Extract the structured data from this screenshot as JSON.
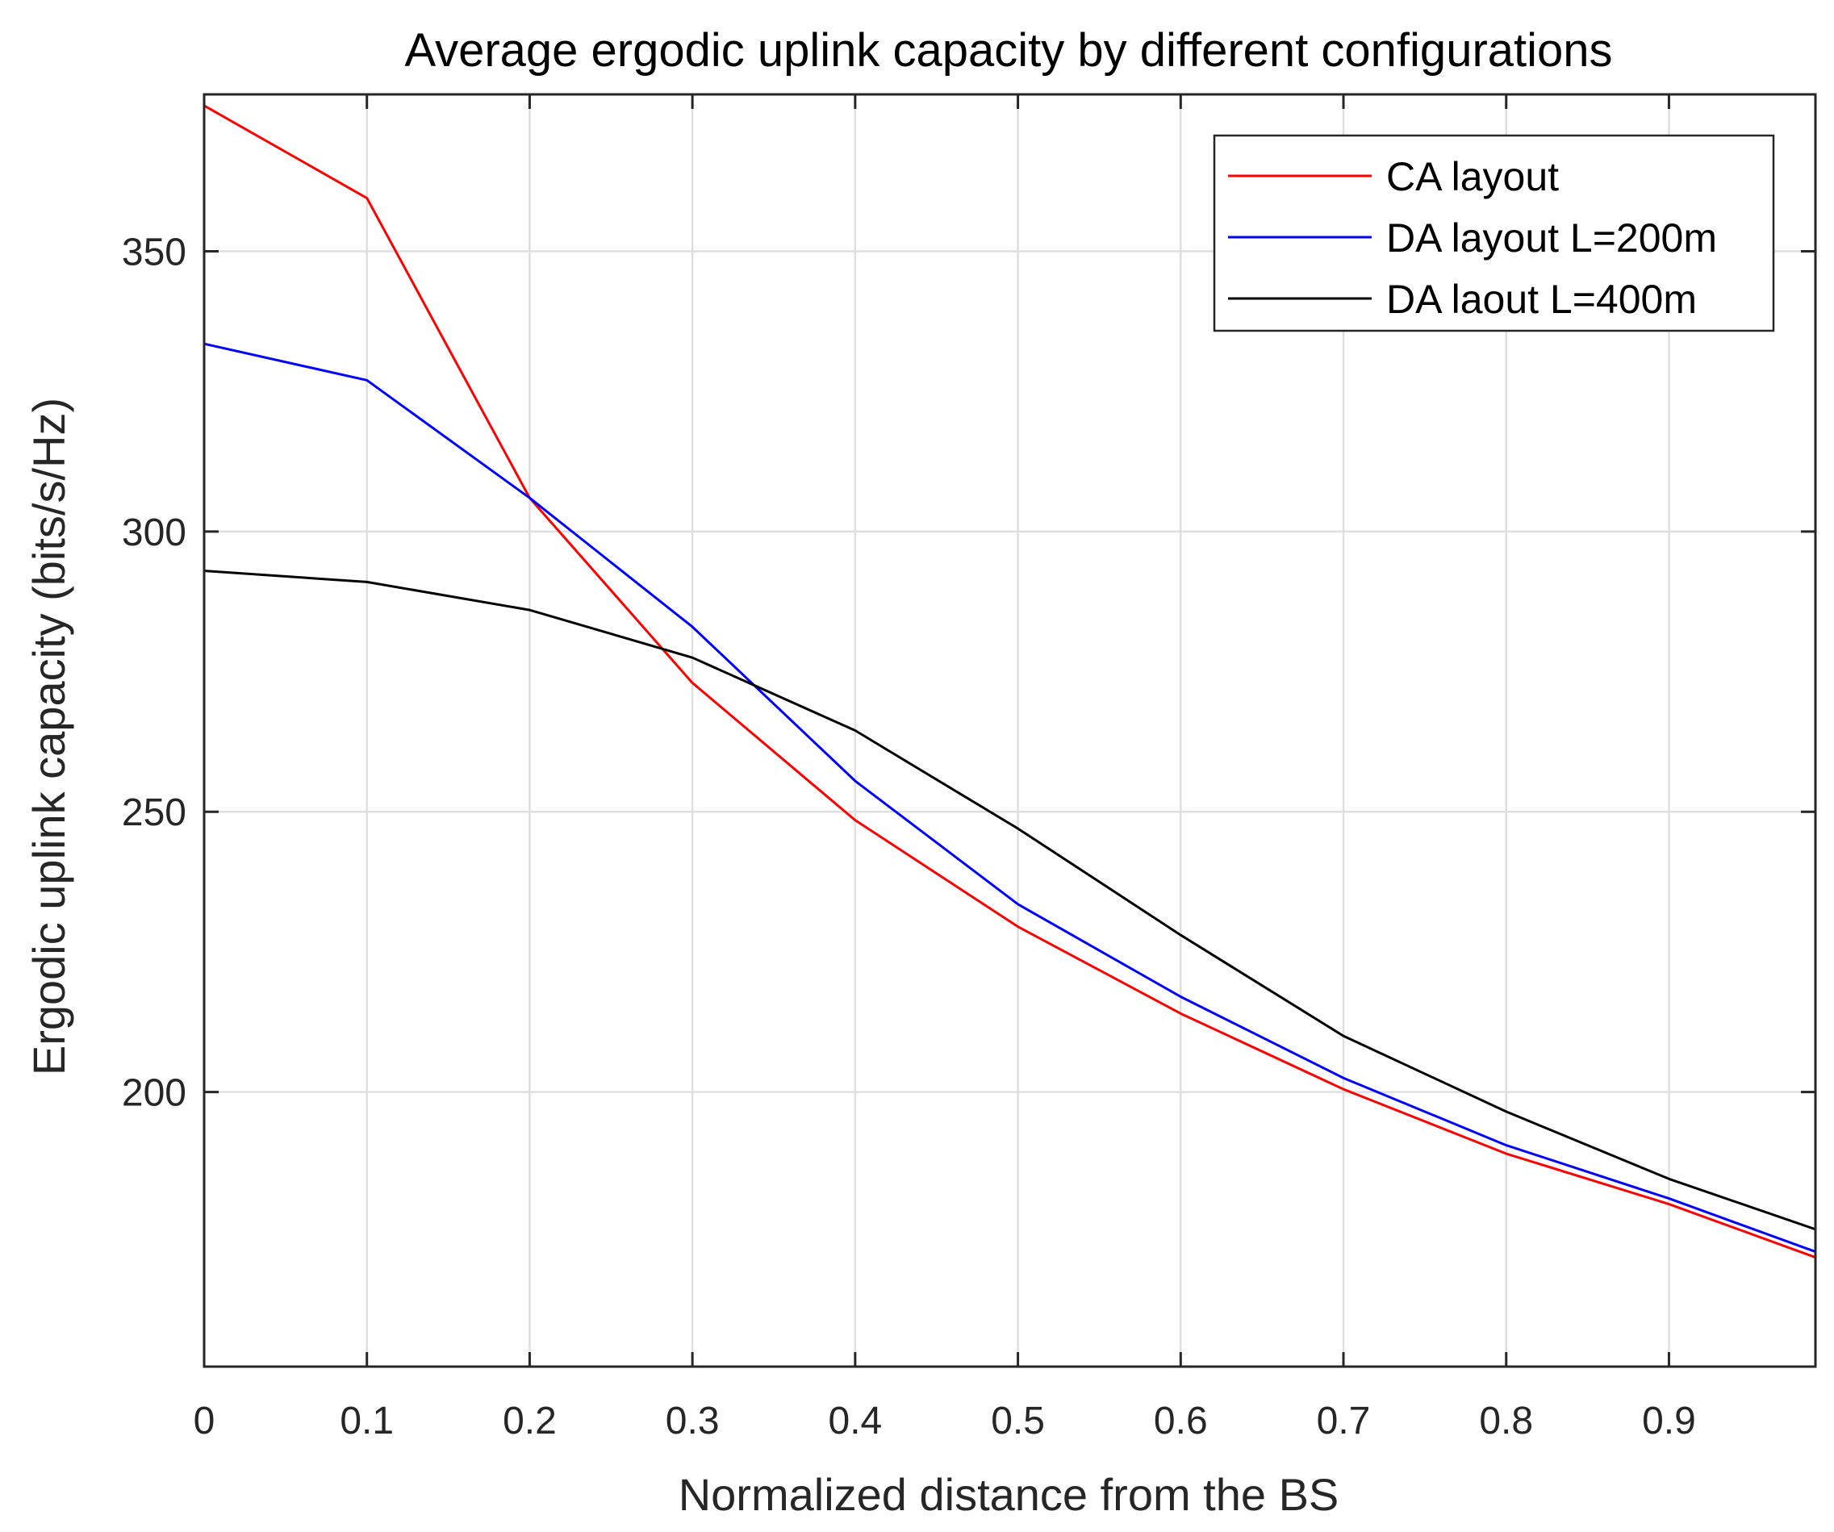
{
  "chart_data": {
    "type": "line",
    "title": "Average ergodic uplink capacity by different configurations",
    "xlabel": "Normalized distance from the BS",
    "ylabel": "Ergodic uplink capacity (bits/s/Hz)",
    "xlim": [
      0,
      0.99
    ],
    "ylim": [
      151,
      378
    ],
    "xticks": [
      0,
      0.1,
      0.2,
      0.3,
      0.4,
      0.5,
      0.6,
      0.7,
      0.8,
      0.9
    ],
    "xtick_labels": [
      "0",
      "0.1",
      "0.2",
      "0.3",
      "0.4",
      "0.5",
      "0.6",
      "0.7",
      "0.8",
      "0.9"
    ],
    "yticks": [
      200,
      250,
      300,
      350
    ],
    "ytick_labels": [
      "200",
      "250",
      "300",
      "350"
    ],
    "grid": true,
    "legend_position": "top-right",
    "x": [
      0,
      0.1,
      0.2,
      0.3,
      0.4,
      0.5,
      0.6,
      0.7,
      0.8,
      0.9,
      0.99
    ],
    "series": [
      {
        "name": "CA layout",
        "color": "#ff0000",
        "values": [
          376,
          359.5,
          306,
          273,
          248.5,
          229.5,
          214,
          200.5,
          189,
          180,
          170.5
        ]
      },
      {
        "name": "DA layout L=200m",
        "color": "#0000ff",
        "values": [
          333.5,
          327,
          306,
          283,
          255.5,
          233.5,
          217,
          202.5,
          190.5,
          181,
          171.5
        ]
      },
      {
        "name": "DA laout L=400m",
        "color": "#000000",
        "values": [
          293,
          291,
          286,
          277.5,
          264.5,
          247,
          228,
          210,
          196.5,
          184.5,
          175.5
        ]
      }
    ]
  }
}
